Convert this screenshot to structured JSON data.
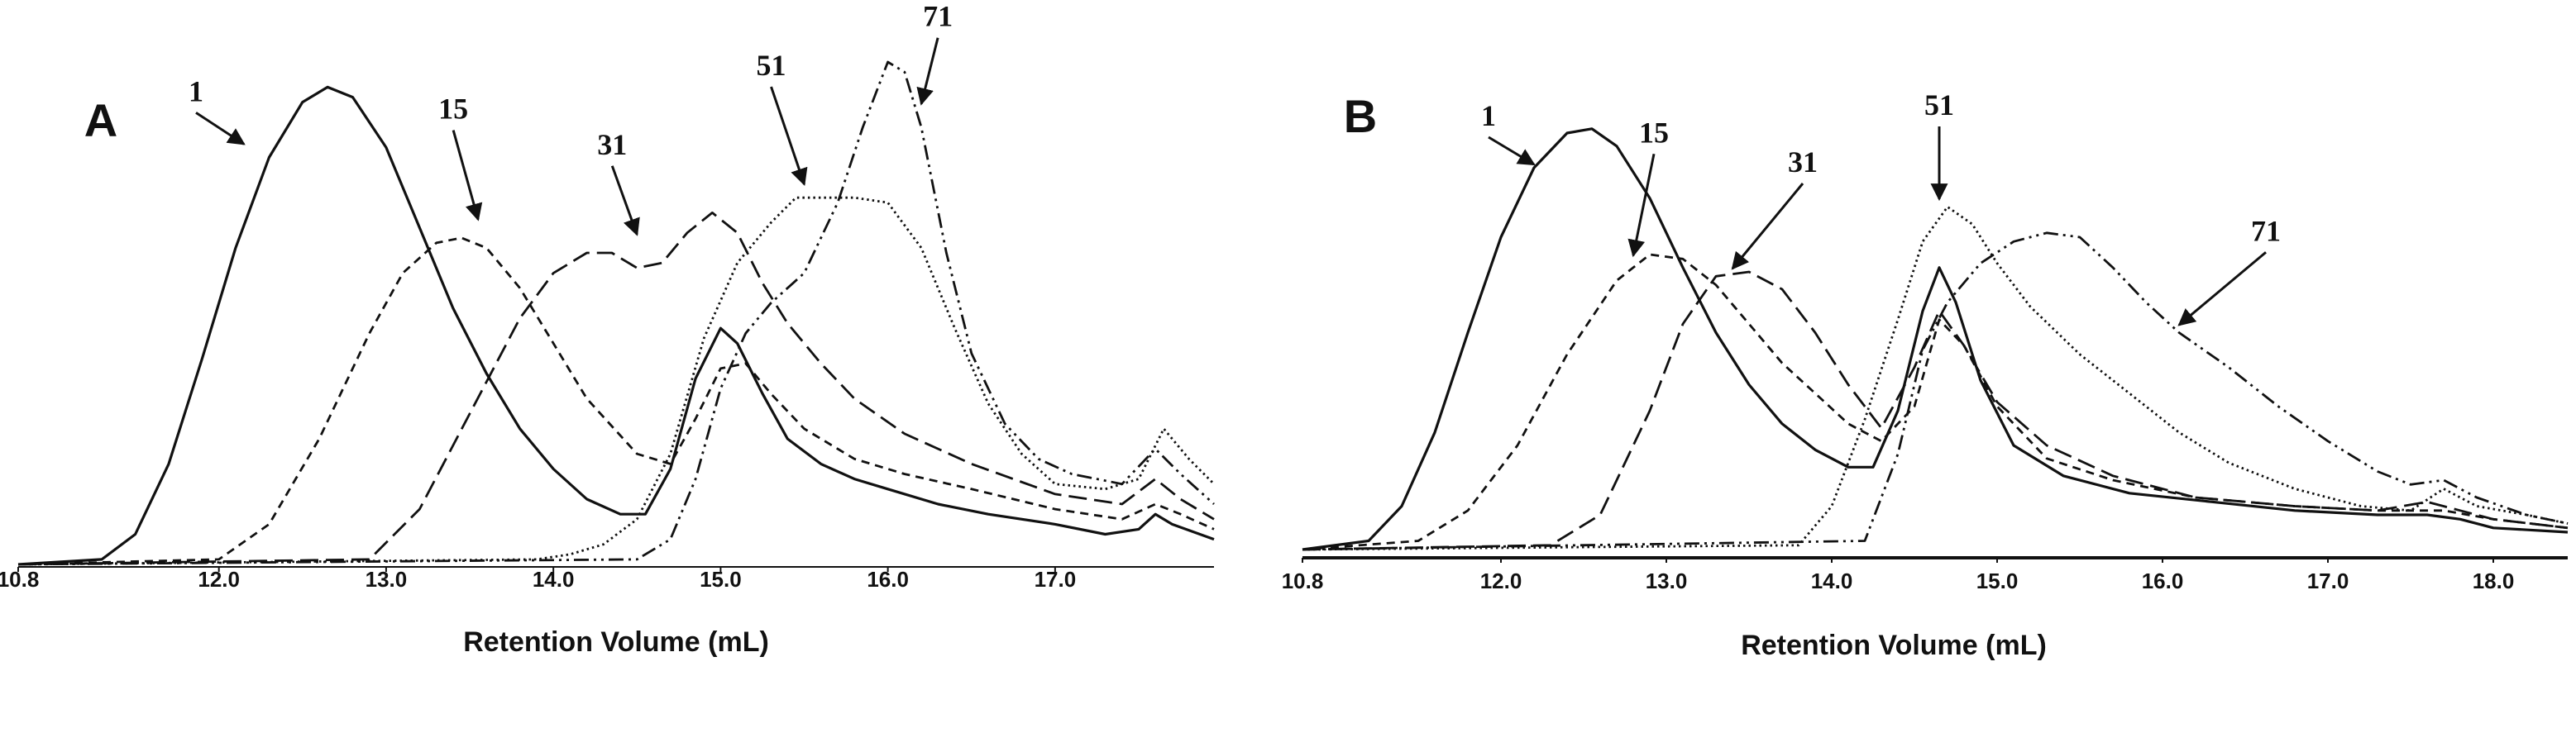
{
  "chart_data": [
    {
      "type": "line",
      "panel_label": "A",
      "title": "",
      "xlabel": "Retention Volume (mL)",
      "ylabel": "",
      "xlim": [
        10.8,
        17.95
      ],
      "ylim": [
        0,
        1.0
      ],
      "xticks": [
        10.8,
        12.0,
        13.0,
        14.0,
        15.0,
        16.0,
        17.0
      ],
      "xtick_labels": [
        "10.8",
        "12.0",
        "13.0",
        "14.0",
        "15.0",
        "16.0",
        "17.0"
      ],
      "grid": false,
      "legend": "none",
      "series": [
        {
          "name": "1",
          "style": "solid",
          "x": [
            10.8,
            11.3,
            11.5,
            11.7,
            11.9,
            12.1,
            12.3,
            12.5,
            12.65,
            12.8,
            13.0,
            13.2,
            13.4,
            13.6,
            13.8,
            14.0,
            14.2,
            14.4,
            14.55,
            14.7,
            14.85,
            15.0,
            15.1,
            15.25,
            15.4,
            15.6,
            15.8,
            16.0,
            16.3,
            16.6,
            17.0,
            17.3,
            17.5,
            17.6,
            17.7,
            17.95
          ],
          "y": [
            0.0,
            0.01,
            0.06,
            0.2,
            0.41,
            0.63,
            0.81,
            0.92,
            0.95,
            0.93,
            0.83,
            0.67,
            0.51,
            0.38,
            0.27,
            0.19,
            0.13,
            0.1,
            0.1,
            0.19,
            0.37,
            0.47,
            0.44,
            0.34,
            0.25,
            0.2,
            0.17,
            0.15,
            0.12,
            0.1,
            0.08,
            0.06,
            0.07,
            0.1,
            0.08,
            0.05
          ]
        },
        {
          "name": "15",
          "style": "short-dash",
          "x": [
            10.8,
            12.0,
            12.3,
            12.6,
            12.9,
            13.1,
            13.3,
            13.45,
            13.6,
            13.8,
            14.0,
            14.2,
            14.5,
            14.7,
            14.85,
            15.0,
            15.15,
            15.3,
            15.5,
            15.8,
            16.1,
            16.5,
            17.0,
            17.4,
            17.6,
            17.75,
            17.95
          ],
          "y": [
            0.0,
            0.01,
            0.08,
            0.25,
            0.46,
            0.58,
            0.64,
            0.65,
            0.63,
            0.55,
            0.44,
            0.33,
            0.22,
            0.2,
            0.29,
            0.39,
            0.4,
            0.34,
            0.27,
            0.21,
            0.18,
            0.15,
            0.11,
            0.09,
            0.12,
            0.1,
            0.07
          ]
        },
        {
          "name": "31",
          "style": "long-dash",
          "x": [
            10.8,
            12.9,
            13.2,
            13.5,
            13.8,
            14.0,
            14.2,
            14.35,
            14.5,
            14.65,
            14.8,
            14.95,
            15.1,
            15.25,
            15.4,
            15.6,
            15.8,
            16.1,
            16.5,
            17.0,
            17.4,
            17.6,
            17.75,
            17.95
          ],
          "y": [
            0.0,
            0.01,
            0.11,
            0.3,
            0.49,
            0.58,
            0.62,
            0.62,
            0.59,
            0.6,
            0.66,
            0.7,
            0.66,
            0.56,
            0.48,
            0.4,
            0.33,
            0.26,
            0.2,
            0.14,
            0.12,
            0.17,
            0.13,
            0.09
          ]
        },
        {
          "name": "51",
          "style": "dotted",
          "x": [
            10.8,
            13.9,
            14.1,
            14.3,
            14.5,
            14.7,
            14.9,
            15.1,
            15.3,
            15.45,
            15.6,
            15.8,
            16.0,
            16.2,
            16.4,
            16.6,
            16.8,
            17.0,
            17.3,
            17.5,
            17.65,
            17.8,
            17.95
          ],
          "y": [
            0.0,
            0.01,
            0.02,
            0.04,
            0.09,
            0.22,
            0.45,
            0.6,
            0.68,
            0.73,
            0.73,
            0.73,
            0.72,
            0.63,
            0.47,
            0.32,
            0.22,
            0.16,
            0.15,
            0.17,
            0.27,
            0.21,
            0.16
          ]
        },
        {
          "name": "71",
          "style": "dash-dot-dot",
          "x": [
            10.8,
            14.5,
            14.7,
            14.85,
            15.0,
            15.15,
            15.3,
            15.5,
            15.7,
            15.85,
            16.0,
            16.1,
            16.2,
            16.35,
            16.5,
            16.7,
            16.9,
            17.1,
            17.4,
            17.6,
            17.75,
            17.95
          ],
          "y": [
            0.0,
            0.01,
            0.05,
            0.17,
            0.35,
            0.46,
            0.52,
            0.58,
            0.72,
            0.87,
            1.0,
            0.98,
            0.87,
            0.62,
            0.42,
            0.28,
            0.21,
            0.18,
            0.16,
            0.23,
            0.18,
            0.12
          ]
        }
      ],
      "annotations": [
        {
          "text": "1",
          "x": 12.15,
          "y": 0.83,
          "arrow": true
        },
        {
          "text": "15",
          "x": 13.55,
          "y": 0.68,
          "arrow": true
        },
        {
          "text": "31",
          "x": 14.5,
          "y": 0.65,
          "arrow": true
        },
        {
          "text": "51",
          "x": 15.5,
          "y": 0.75,
          "arrow": true
        },
        {
          "text": "71",
          "x": 16.2,
          "y": 0.91,
          "arrow": true
        }
      ]
    },
    {
      "type": "line",
      "panel_label": "B",
      "title": "",
      "xlabel": "Retention Volume (mL)",
      "ylabel": "",
      "xlim": [
        10.8,
        18.45
      ],
      "ylim": [
        0,
        1.0
      ],
      "xticks": [
        10.8,
        12.0,
        13.0,
        14.0,
        15.0,
        16.0,
        17.0,
        18.0
      ],
      "xtick_labels": [
        "10.8",
        "12.0",
        "13.0",
        "14.0",
        "15.0",
        "16.0",
        "17.0",
        "18.0"
      ],
      "grid": false,
      "legend": "none",
      "series": [
        {
          "name": "1",
          "style": "solid",
          "x": [
            10.8,
            11.2,
            11.4,
            11.6,
            11.8,
            12.0,
            12.2,
            12.4,
            12.55,
            12.7,
            12.9,
            13.1,
            13.3,
            13.5,
            13.7,
            13.9,
            14.1,
            14.25,
            14.4,
            14.55,
            14.65,
            14.75,
            14.9,
            15.1,
            15.4,
            15.8,
            16.3,
            16.8,
            17.3,
            17.6,
            17.8,
            18.0,
            18.45
          ],
          "y": [
            0.0,
            0.02,
            0.1,
            0.27,
            0.5,
            0.72,
            0.88,
            0.96,
            0.97,
            0.93,
            0.81,
            0.65,
            0.5,
            0.38,
            0.29,
            0.23,
            0.19,
            0.19,
            0.32,
            0.55,
            0.65,
            0.57,
            0.39,
            0.24,
            0.17,
            0.13,
            0.11,
            0.09,
            0.08,
            0.08,
            0.07,
            0.05,
            0.04
          ]
        },
        {
          "name": "15",
          "style": "short-dash",
          "x": [
            10.8,
            11.5,
            11.8,
            12.1,
            12.4,
            12.7,
            12.9,
            13.1,
            13.3,
            13.5,
            13.7,
            13.9,
            14.1,
            14.3,
            14.5,
            14.65,
            14.8,
            15.0,
            15.3,
            15.7,
            16.2,
            16.8,
            17.3,
            17.7,
            18.0,
            18.45
          ],
          "y": [
            0.0,
            0.02,
            0.09,
            0.24,
            0.45,
            0.62,
            0.68,
            0.67,
            0.61,
            0.52,
            0.43,
            0.36,
            0.29,
            0.25,
            0.33,
            0.53,
            0.47,
            0.33,
            0.21,
            0.16,
            0.12,
            0.1,
            0.09,
            0.09,
            0.07,
            0.05
          ]
        },
        {
          "name": "31",
          "style": "long-dash",
          "x": [
            10.8,
            12.3,
            12.6,
            12.9,
            13.1,
            13.3,
            13.5,
            13.7,
            13.9,
            14.1,
            14.3,
            14.5,
            14.65,
            14.8,
            15.0,
            15.3,
            15.7,
            16.2,
            16.8,
            17.3,
            17.6,
            17.8,
            18.0,
            18.45
          ],
          "y": [
            0.0,
            0.01,
            0.08,
            0.32,
            0.52,
            0.63,
            0.64,
            0.6,
            0.5,
            0.38,
            0.28,
            0.42,
            0.55,
            0.47,
            0.34,
            0.24,
            0.17,
            0.12,
            0.1,
            0.09,
            0.11,
            0.09,
            0.07,
            0.05
          ]
        },
        {
          "name": "51",
          "style": "dotted",
          "x": [
            10.8,
            13.8,
            14.0,
            14.2,
            14.4,
            14.55,
            14.7,
            14.85,
            15.0,
            15.2,
            15.5,
            15.8,
            16.1,
            16.4,
            16.8,
            17.2,
            17.5,
            17.7,
            17.9,
            18.2,
            18.45
          ],
          "y": [
            0.0,
            0.01,
            0.1,
            0.3,
            0.53,
            0.71,
            0.79,
            0.75,
            0.66,
            0.56,
            0.45,
            0.36,
            0.27,
            0.2,
            0.14,
            0.1,
            0.09,
            0.14,
            0.1,
            0.08,
            0.06
          ]
        },
        {
          "name": "71",
          "style": "dash-dot-dot",
          "x": [
            10.8,
            14.2,
            14.4,
            14.55,
            14.7,
            14.9,
            15.1,
            15.3,
            15.5,
            15.7,
            15.9,
            16.1,
            16.4,
            16.7,
            17.0,
            17.3,
            17.5,
            17.7,
            17.9,
            18.2,
            18.45
          ],
          "y": [
            0.0,
            0.02,
            0.22,
            0.46,
            0.57,
            0.66,
            0.71,
            0.73,
            0.72,
            0.65,
            0.57,
            0.5,
            0.42,
            0.33,
            0.25,
            0.18,
            0.15,
            0.16,
            0.12,
            0.08,
            0.06
          ]
        }
      ],
      "annotations": [
        {
          "text": "1",
          "x": 12.2,
          "y": 0.88,
          "arrow": true
        },
        {
          "text": "15",
          "x": 12.8,
          "y": 0.67,
          "arrow": true
        },
        {
          "text": "31",
          "x": 13.4,
          "y": 0.64,
          "arrow": true
        },
        {
          "text": "51",
          "x": 14.65,
          "y": 0.8,
          "arrow": true
        },
        {
          "text": "71",
          "x": 16.1,
          "y": 0.51,
          "arrow": true
        }
      ]
    }
  ]
}
